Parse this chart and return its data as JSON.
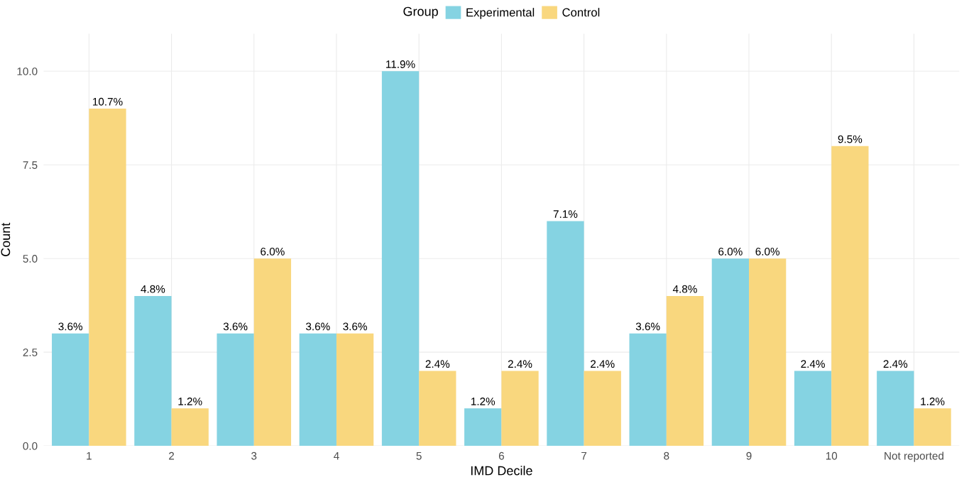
{
  "chart_data": {
    "type": "bar",
    "xlabel": "IMD Decile",
    "ylabel": "Count",
    "legend_title": "Group",
    "legend": "top",
    "categories": [
      "1",
      "2",
      "3",
      "4",
      "5",
      "6",
      "7",
      "8",
      "9",
      "10",
      "Not reported"
    ],
    "series": [
      {
        "name": "Experimental",
        "color": "#85d3e2",
        "values": [
          3,
          4,
          3,
          3,
          10,
          1,
          6,
          3,
          5,
          2,
          2
        ]
      },
      {
        "name": "Control",
        "color": "#f9d77e",
        "values": [
          9,
          1,
          5,
          3,
          2,
          2,
          2,
          4,
          5,
          8,
          1
        ]
      }
    ],
    "annotations": [
      {
        "text": "3.6%",
        "x": "1",
        "y": 3
      },
      {
        "text": "10.7%",
        "x": "1",
        "y": 9
      },
      {
        "text": "4.8%",
        "x": "2",
        "y": 4
      },
      {
        "text": "1.2%",
        "x": "2",
        "y": 1
      },
      {
        "text": "3.6%",
        "x": "3",
        "y": 3
      },
      {
        "text": "6.0%",
        "x": "3",
        "y": 5
      },
      {
        "text": "3.6%",
        "x": "4",
        "y": 3
      },
      {
        "text": "3.6%",
        "x": "4",
        "y": 3
      },
      {
        "text": "11.9%",
        "x": "5",
        "y": 10
      },
      {
        "text": "2.4%",
        "x": "5",
        "y": 2
      },
      {
        "text": "1.2%",
        "x": "6",
        "y": 1
      },
      {
        "text": "2.4%",
        "x": "6",
        "y": 2
      },
      {
        "text": "7.1%",
        "x": "7",
        "y": 6
      },
      {
        "text": "2.4%",
        "x": "7",
        "y": 2
      },
      {
        "text": "3.6%",
        "x": "8",
        "y": 3
      },
      {
        "text": "4.8%",
        "x": "8",
        "y": 4
      },
      {
        "text": "6.0%",
        "x": "9",
        "y": 5
      },
      {
        "text": "6.0%",
        "x": "9",
        "y": 5
      },
      {
        "text": "2.4%",
        "x": "10",
        "y": 2
      },
      {
        "text": "9.5%",
        "x": "10",
        "y": 8
      },
      {
        "text": "2.4%",
        "x": "Not reported",
        "y": 2
      },
      {
        "text": "1.2%",
        "x": "Not reported",
        "y": 1
      }
    ],
    "ylim": [
      0,
      11
    ],
    "yticks": [
      {
        "value": 0,
        "label": "0.0"
      },
      {
        "value": 2.5,
        "label": "2.5"
      },
      {
        "value": 5,
        "label": "5.0"
      },
      {
        "value": 7.5,
        "label": "7.5"
      },
      {
        "value": 10,
        "label": "10.0"
      }
    ],
    "grid": true
  }
}
